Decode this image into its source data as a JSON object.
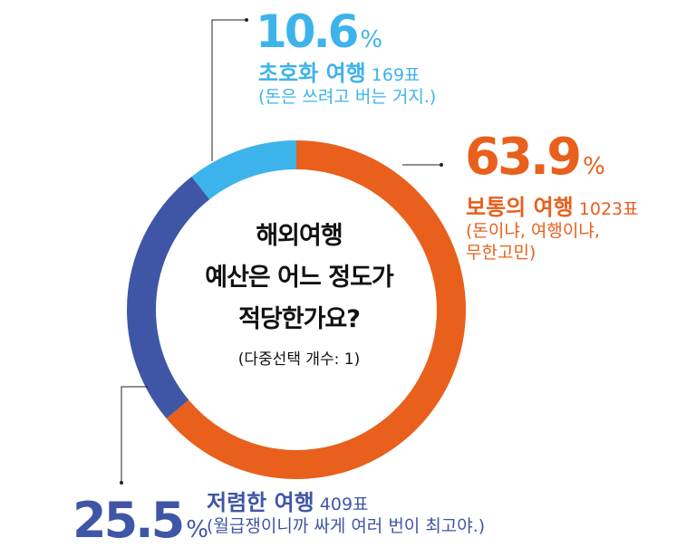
{
  "chart_data": {
    "type": "pie",
    "donut": true,
    "title": "해외여행 예산은 어느 정도가 적당한가요?",
    "title_lines": [
      "해외여행",
      "예산은 어느 정도가",
      "적당한가요?"
    ],
    "subtitle": "(다중선택 개수: 1)",
    "slices": [
      {
        "pct_label": "63.9",
        "value": 63.9,
        "name": "보통의 여행",
        "votes": "1023표",
        "desc_lines": [
          "(돈이냐, 여행이냐,",
          "무한고민)"
        ],
        "color": "#E8601C"
      },
      {
        "pct_label": "25.5",
        "value": 25.5,
        "name": "저렴한 여행",
        "votes": "409표",
        "desc_lines": [
          "(월급쟁이니까 싸게 여러 번이 최고야.)"
        ],
        "color": "#3F56A6"
      },
      {
        "pct_label": "10.6",
        "value": 10.6,
        "name": "초호화 여행",
        "votes": "169표",
        "desc_lines": [
          "(돈은 쓰려고 버는 거지.)"
        ],
        "color": "#3DB3EB"
      }
    ],
    "percent_symbol": "%"
  }
}
